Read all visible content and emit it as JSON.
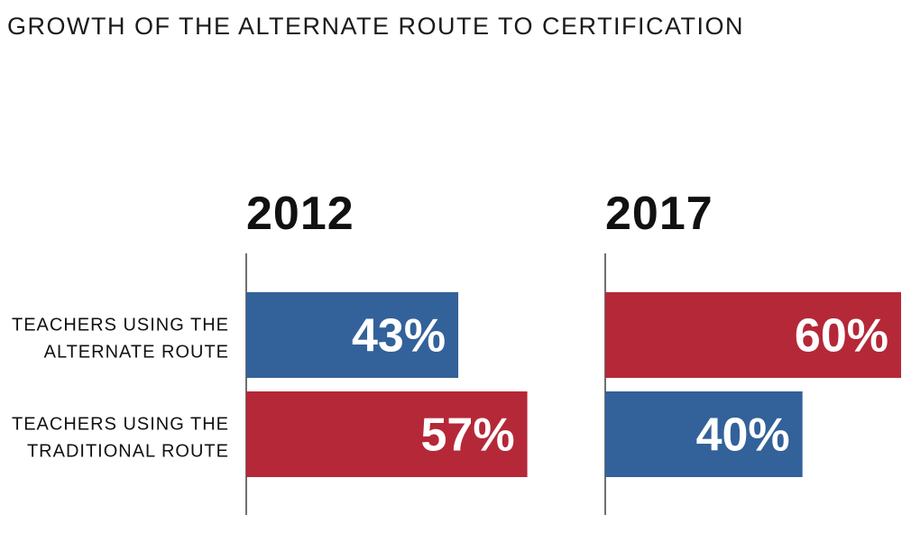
{
  "chart_data": {
    "type": "bar",
    "title": "GROWTH OF THE ALTERNATE ROUTE TO CERTIFICATION",
    "categories": [
      "TEACHERS USING THE ALTERNATE ROUTE",
      "TEACHERS USING THE TRADITIONAL ROUTE"
    ],
    "category_label_lines": [
      [
        "TEACHERS USING THE",
        "ALTERNATE ROUTE"
      ],
      [
        "TEACHERS USING THE",
        "TRADITIONAL ROUTE"
      ]
    ],
    "panels": [
      {
        "name": "2012",
        "values": [
          43,
          57
        ],
        "labels": [
          "43%",
          "57%"
        ],
        "colors": [
          "#33619a",
          "#b52838"
        ]
      },
      {
        "name": "2017",
        "values": [
          60,
          40
        ],
        "labels": [
          "60%",
          "40%"
        ],
        "colors": [
          "#b52838",
          "#33619a"
        ]
      }
    ],
    "unit": "%",
    "xlim": [
      0,
      60
    ],
    "grid": false,
    "legend": "none"
  },
  "colors": {
    "blue": "#33619a",
    "red": "#b52838"
  }
}
